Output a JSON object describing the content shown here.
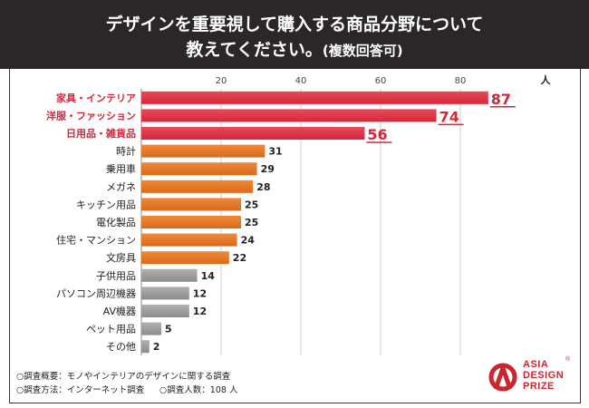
{
  "header": {
    "title_line1": "デザインを重要視して購入する商品分野について",
    "title_line2": "教えてください。",
    "title_note": "(複数回答可)"
  },
  "chart_data": {
    "type": "bar",
    "orientation": "horizontal",
    "title": "デザインを重要視して購入する商品分野について教えてください。(複数回答可)",
    "unit": "人",
    "xlim": [
      0,
      100
    ],
    "ticks": [
      20,
      40,
      60,
      80
    ],
    "categories": [
      "家具・インテリア",
      "洋服・ファッション",
      "日用品・雑貨品",
      "時計",
      "乗用車",
      "メガネ",
      "キッチン用品",
      "電化製品",
      "住宅・マンション",
      "文房具",
      "子供用品",
      "パソコン周辺機器",
      "AV機器",
      "ペット用品",
      "その他"
    ],
    "values": [
      87,
      74,
      56,
      31,
      29,
      28,
      25,
      25,
      24,
      22,
      14,
      12,
      12,
      5,
      2
    ],
    "groups": [
      "top",
      "top",
      "top",
      "mid",
      "mid",
      "mid",
      "mid",
      "mid",
      "mid",
      "mid",
      "low",
      "low",
      "low",
      "low",
      "low"
    ],
    "colors": {
      "top": "#d5263a",
      "mid": "#d96a1a",
      "low": "#8c8c8c",
      "top_label": "#d5263a"
    }
  },
  "notes": {
    "survey_summary": "○調査概要：モノやインテリアのデザインに関する調査",
    "survey_method": "○調査方法：インターネット調査",
    "respondents": "○調査人数：108 人"
  },
  "logo": {
    "line1": "ASIA",
    "line2": "DESIGN",
    "line3": "PRIZE",
    "reg": "®"
  }
}
